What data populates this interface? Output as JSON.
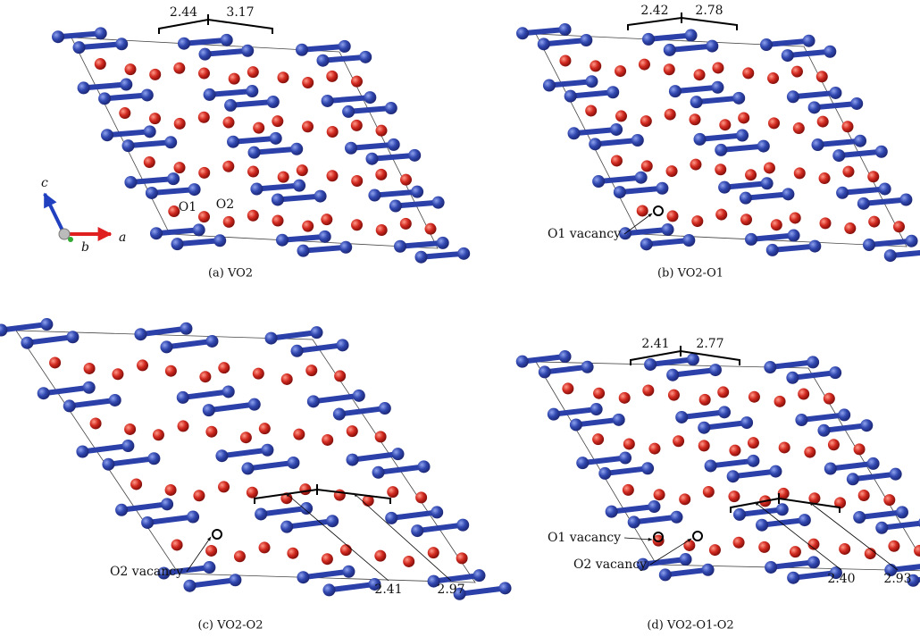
{
  "panels": [
    {
      "caption": "(a) VO2",
      "bonds": [
        "2.44",
        "3.17"
      ],
      "atom_labels": [
        "O1",
        "O2"
      ],
      "axes": [
        "a",
        "b",
        "c"
      ]
    },
    {
      "caption": "(b) VO2-O1",
      "bonds": [
        "2.42",
        "2.78"
      ],
      "vacancies": [
        "O1 vacancy"
      ]
    },
    {
      "caption": "(c) VO2-O2",
      "bonds": [
        "2.41",
        "2.97"
      ],
      "vacancies": [
        "O2 vacancy"
      ]
    },
    {
      "caption": "(d) VO2-O1-O2",
      "bonds": [
        "2.41",
        "2.77",
        "2.40",
        "2.93"
      ],
      "vacancies": [
        "O1 vacancy",
        "O2 vacancy"
      ]
    }
  ]
}
